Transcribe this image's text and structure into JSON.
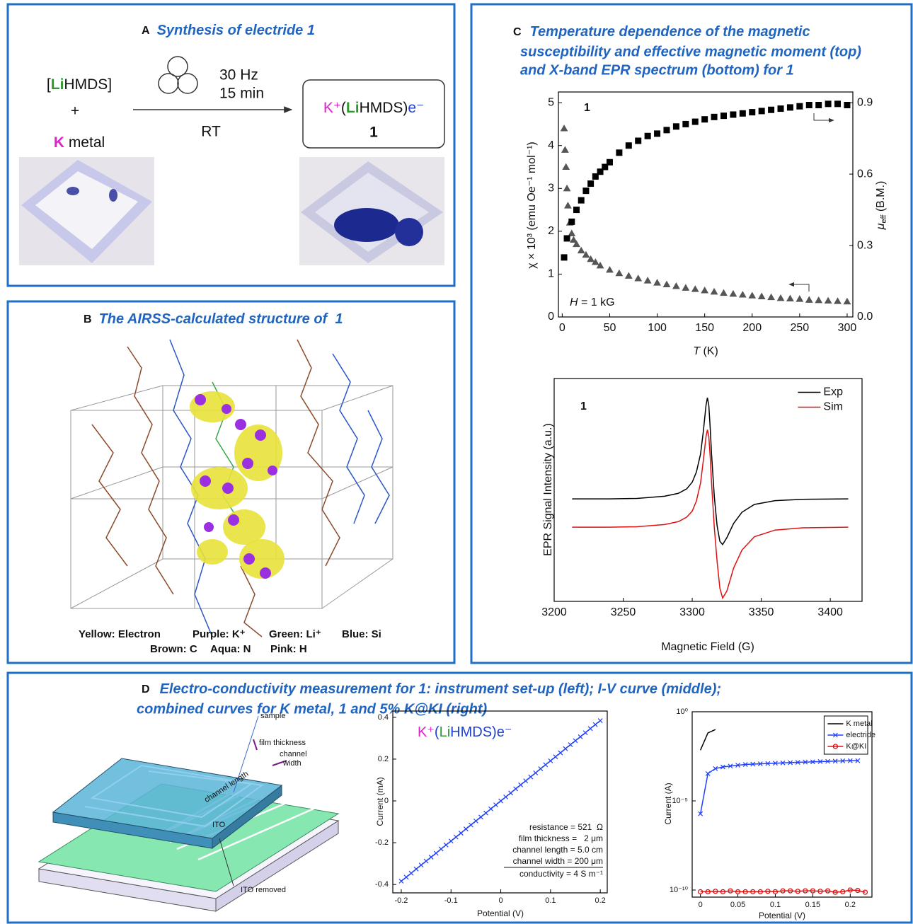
{
  "panel_a": {
    "label": "A",
    "title": "Synthesis of electride 1",
    "reactant_1": [
      "[",
      "Li",
      "HMDS]"
    ],
    "plus": "+",
    "reactant_2": [
      "K",
      " metal"
    ],
    "conditions": [
      "30 Hz",
      "15 min"
    ],
    "temperature": "RT",
    "product": [
      "K⁺",
      "(",
      "Li",
      "HMDS)",
      "e⁻"
    ],
    "product_number": "1"
  },
  "panel_b": {
    "label": "B",
    "title": "The AIRSS-calculated structure of  1",
    "legend": [
      "Yellow: Electron",
      "Purple: K⁺",
      "Green: Li⁺",
      "Blue: Si",
      "Brown: C",
      "Aqua: N",
      "Pink: H"
    ]
  },
  "panel_c": {
    "label": "C",
    "title_lines": [
      "Temperature dependence of the magnetic",
      "susceptibility and effective magnetic moment (top)",
      "and X-band EPR spectrum (bottom) for 1"
    ]
  },
  "panel_d": {
    "label": "D",
    "title_lines": [
      "Electro-conductivity measurement for 1: instrument set-up (left); I-V curve (middle);",
      "combined curves for K metal, 1 and 5% K@KI (right)"
    ],
    "diagram_labels": [
      "sample",
      "film thickness",
      [
        "channel",
        "width"
      ],
      "channel length",
      "ITO",
      "ITO removed"
    ]
  },
  "chart_data": [
    {
      "type": "scatter",
      "xlabel": [
        "T",
        " (K)"
      ],
      "ylabel": "χ × 10³ (emu Oe⁻¹ mol⁻¹)",
      "y2label": [
        "μ",
        "eff",
        " (B.M.)"
      ],
      "annotation": "1",
      "field_note": [
        "H",
        " = 1 kG"
      ],
      "xlim": [
        -4,
        306
      ],
      "xticks": [
        0,
        50,
        100,
        150,
        200,
        250,
        300
      ],
      "ylim": [
        0,
        5.25
      ],
      "yticks": [
        0,
        1,
        2,
        3,
        4,
        5
      ],
      "y2lim": [
        0,
        0.945
      ],
      "y2ticks": [
        {
          "value": 0,
          "label": "0.0"
        },
        0.3,
        0.6,
        0.9
      ],
      "series": [
        {
          "marker": "triangle",
          "color": "#555555",
          "line": false,
          "x": [
            2,
            3,
            4,
            5,
            6,
            8,
            10,
            12,
            15,
            20,
            25,
            30,
            35,
            40,
            50,
            60,
            70,
            80,
            90,
            100,
            110,
            120,
            130,
            140,
            150,
            160,
            170,
            180,
            190,
            200,
            210,
            220,
            230,
            240,
            250,
            260,
            270,
            280,
            290,
            300
          ],
          "values": [
            4.4,
            3.9,
            3.5,
            3.0,
            2.6,
            2.2,
            1.95,
            1.8,
            1.7,
            1.55,
            1.45,
            1.35,
            1.28,
            1.2,
            1.1,
            1.02,
            0.96,
            0.9,
            0.85,
            0.8,
            0.76,
            0.72,
            0.68,
            0.65,
            0.62,
            0.59,
            0.56,
            0.54,
            0.52,
            0.5,
            0.48,
            0.46,
            0.44,
            0.43,
            0.42,
            0.4,
            0.39,
            0.38,
            0.37,
            0.36
          ]
        },
        {
          "marker": "square",
          "color": "#000000",
          "line": false,
          "axis": "y2",
          "x": [
            2,
            5,
            10,
            15,
            20,
            25,
            30,
            35,
            40,
            45,
            50,
            60,
            70,
            80,
            90,
            100,
            110,
            120,
            130,
            140,
            150,
            160,
            170,
            180,
            190,
            200,
            210,
            220,
            230,
            240,
            250,
            260,
            270,
            280,
            290,
            300
          ],
          "values": [
            0.25,
            0.33,
            0.4,
            0.45,
            0.49,
            0.53,
            0.56,
            0.59,
            0.61,
            0.63,
            0.65,
            0.69,
            0.72,
            0.74,
            0.76,
            0.77,
            0.785,
            0.8,
            0.81,
            0.82,
            0.83,
            0.84,
            0.845,
            0.85,
            0.855,
            0.86,
            0.865,
            0.87,
            0.875,
            0.88,
            0.885,
            0.89,
            0.89,
            0.895,
            0.895,
            0.89
          ]
        }
      ]
    },
    {
      "type": "line",
      "xlabel": "Magnetic Field (G)",
      "ylabel": "EPR Signal Intensity (a.u.)",
      "annotation": "1",
      "legend": "upper right",
      "xlim": [
        3200,
        3423
      ],
      "xticks": [
        3200,
        3250,
        3300,
        3350,
        3400
      ],
      "ylim": [
        0,
        10
      ],
      "series": [
        {
          "name": "Exp",
          "color": "#000000",
          "line": true,
          "marker": "none",
          "x": [
            3213,
            3240,
            3260,
            3280,
            3290,
            3296,
            3300,
            3303,
            3306,
            3308,
            3310,
            3311,
            3312,
            3313,
            3314,
            3316,
            3318,
            3320,
            3322,
            3325,
            3330,
            3336,
            3345,
            3360,
            3380,
            3413
          ],
          "values": [
            4.6,
            4.6,
            4.62,
            4.72,
            4.85,
            5.05,
            5.35,
            5.8,
            6.6,
            7.6,
            8.8,
            9.14,
            8.8,
            7.8,
            6.6,
            4.7,
            3.4,
            2.7,
            2.55,
            2.85,
            3.5,
            4.0,
            4.35,
            4.52,
            4.58,
            4.6
          ]
        },
        {
          "name": "Sim",
          "color": "#e01010",
          "line": true,
          "marker": "none",
          "x": [
            3213,
            3240,
            3260,
            3280,
            3290,
            3296,
            3300,
            3303,
            3306,
            3308,
            3310,
            3311,
            3312,
            3313,
            3314,
            3316,
            3318,
            3320,
            3322,
            3325,
            3330,
            3336,
            3345,
            3360,
            3380,
            3413
          ],
          "values": [
            3.33,
            3.33,
            3.35,
            3.45,
            3.58,
            3.78,
            4.05,
            4.5,
            5.3,
            6.3,
            7.4,
            7.7,
            7.4,
            6.5,
            5.3,
            3.3,
            1.8,
            0.6,
            0.15,
            0.45,
            1.5,
            2.3,
            2.9,
            3.2,
            3.3,
            3.33
          ]
        }
      ]
    },
    {
      "type": "line",
      "xlabel": "Potential (V)",
      "ylabel": "Current (mA)",
      "inset_label": [
        "K⁺",
        "(",
        "Li",
        "HMDS)e⁻"
      ],
      "annotations": [
        "resistance = 521  Ω",
        "film thickness =   2 μm",
        "channel length = 5.0 cm",
        "channel width = 200 μm",
        "conductivity = 4 S m⁻¹"
      ],
      "xlim": [
        -0.217,
        0.214
      ],
      "xticks": [
        -0.2,
        -0.1,
        0,
        0.1,
        0.2
      ],
      "ylim": [
        -0.44,
        0.43
      ],
      "yticks": [
        -0.4,
        -0.2,
        0,
        0.2,
        0.4
      ],
      "series": [
        {
          "color": "#1f3fff",
          "line": true,
          "marker": "x",
          "x": [
            -0.2,
            -0.19,
            -0.18,
            -0.17,
            -0.16,
            -0.15,
            -0.14,
            -0.13,
            -0.12,
            -0.11,
            -0.1,
            -0.09,
            -0.08,
            -0.07,
            -0.06,
            -0.05,
            -0.04,
            -0.03,
            -0.02,
            -0.01,
            0,
            0.01,
            0.02,
            0.03,
            0.04,
            0.05,
            0.06,
            0.07,
            0.08,
            0.09,
            0.1,
            0.11,
            0.12,
            0.13,
            0.14,
            0.15,
            0.16,
            0.17,
            0.18,
            0.19,
            0.2
          ],
          "values": [
            -0.384,
            -0.365,
            -0.346,
            -0.326,
            -0.307,
            -0.288,
            -0.269,
            -0.25,
            -0.23,
            -0.211,
            -0.192,
            -0.173,
            -0.154,
            -0.134,
            -0.115,
            -0.096,
            -0.077,
            -0.058,
            -0.038,
            -0.019,
            0,
            0.019,
            0.038,
            0.058,
            0.077,
            0.096,
            0.115,
            0.134,
            0.154,
            0.173,
            0.192,
            0.211,
            0.23,
            0.25,
            0.269,
            0.288,
            0.307,
            0.326,
            0.346,
            0.365,
            0.384
          ]
        }
      ]
    },
    {
      "type": "line",
      "xlabel": "Potential (V)",
      "ylabel": "Current (A)",
      "log_y": true,
      "legend": "upper right",
      "xlim": [
        -0.011,
        0.229
      ],
      "xticks": [
        0,
        0.05,
        0.1,
        0.15,
        0.2
      ],
      "ylim": [
        4e-11,
        1
      ],
      "yticks": [
        {
          "value": 1,
          "label": "10⁰"
        },
        {
          "value": 1e-05,
          "label": "10⁻⁵"
        },
        {
          "value": 1e-10,
          "label": "10⁻¹⁰"
        }
      ],
      "series": [
        {
          "name": "K metal",
          "color": "#000000",
          "line": true,
          "marker": "none",
          "x": [
            0,
            0.01,
            0.02
          ],
          "values": [
            0.007,
            0.065,
            0.1
          ]
        },
        {
          "name": "electride",
          "color": "#1f3fff",
          "line": true,
          "marker": "x",
          "x": [
            0,
            0.01,
            0.02,
            0.03,
            0.04,
            0.05,
            0.06,
            0.07,
            0.08,
            0.09,
            0.1,
            0.11,
            0.12,
            0.13,
            0.14,
            0.15,
            0.16,
            0.17,
            0.18,
            0.19,
            0.2,
            0.21
          ],
          "values": [
            1.9e-06,
            0.00034,
            0.00065,
            0.0008,
            0.0009,
            0.001,
            0.0011,
            0.00115,
            0.0012,
            0.00125,
            0.0013,
            0.00135,
            0.0014,
            0.00145,
            0.0015,
            0.00155,
            0.0016,
            0.00165,
            0.0017,
            0.00175,
            0.0018,
            0.0018
          ]
        },
        {
          "name": "K@KI",
          "color": "#e01010",
          "line": true,
          "marker": "circle",
          "x": [
            0,
            0.01,
            0.02,
            0.03,
            0.04,
            0.05,
            0.06,
            0.07,
            0.08,
            0.09,
            0.1,
            0.11,
            0.12,
            0.13,
            0.14,
            0.15,
            0.16,
            0.17,
            0.18,
            0.19,
            0.2,
            0.21,
            0.22
          ],
          "values": [
            8e-11,
            8e-11,
            8.5e-11,
            8e-11,
            9e-11,
            8e-11,
            8e-11,
            8e-11,
            8e-11,
            8.5e-11,
            8e-11,
            9e-11,
            9e-11,
            8.5e-11,
            9e-11,
            9e-11,
            8.5e-11,
            9e-11,
            7.5e-11,
            8e-11,
            1e-10,
            9.5e-11,
            7.5e-11
          ]
        }
      ]
    }
  ]
}
